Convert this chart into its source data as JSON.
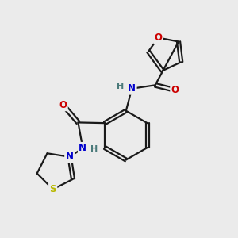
{
  "bg_color": "#ebebeb",
  "atom_colors": {
    "C": "#1a1a1a",
    "H": "#4a7a7a",
    "N": "#0000cd",
    "O": "#cc0000",
    "S": "#b8b800"
  },
  "bond_color": "#1a1a1a",
  "bond_width": 1.6,
  "fig_width": 3.0,
  "fig_height": 3.0,
  "dpi": 100
}
